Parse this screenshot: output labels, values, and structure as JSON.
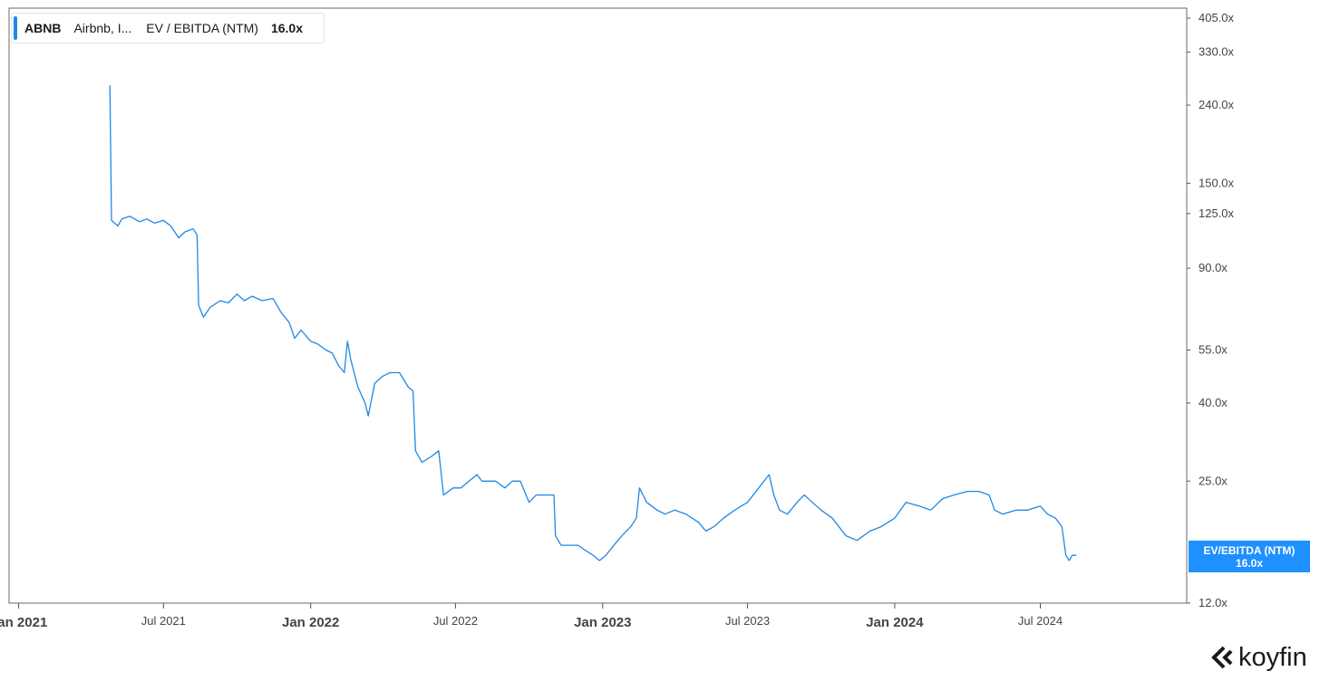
{
  "legend": {
    "ticker": "ABNB",
    "company": "Airbnb, I...",
    "metric": "EV / EBITDA (NTM)",
    "value": "16.0x"
  },
  "value_tag": {
    "label": "EV/EBITDA (NTM)",
    "value": "16.0x"
  },
  "brand": {
    "name": "koyfin"
  },
  "colors": {
    "series": "#1e88e5",
    "tag_bg": "#1e90ff",
    "axis": "#555555",
    "text": "#444444"
  },
  "chart_data": {
    "type": "line",
    "scale": "log",
    "ylim": [
      12,
      430
    ],
    "xlim": [
      "2020-12-20",
      "2024-12-31"
    ],
    "grid": false,
    "yticks": [
      {
        "value": 405,
        "label": "405.0x"
      },
      {
        "value": 330,
        "label": "330.0x"
      },
      {
        "value": 240,
        "label": "240.0x"
      },
      {
        "value": 150,
        "label": "150.0x"
      },
      {
        "value": 125,
        "label": "125.0x"
      },
      {
        "value": 90,
        "label": "90.0x"
      },
      {
        "value": 55,
        "label": "55.0x"
      },
      {
        "value": 40,
        "label": "40.0x"
      },
      {
        "value": 25,
        "label": "25.0x"
      },
      {
        "value": 12,
        "label": "12.0x"
      }
    ],
    "xticks": [
      {
        "date": "2021-01-01",
        "label": "Jan 2021",
        "major": true
      },
      {
        "date": "2021-07-01",
        "label": "Jul 2021",
        "major": false
      },
      {
        "date": "2022-01-01",
        "label": "Jan 2022",
        "major": true
      },
      {
        "date": "2022-07-01",
        "label": "Jul 2022",
        "major": false
      },
      {
        "date": "2023-01-01",
        "label": "Jan 2023",
        "major": true
      },
      {
        "date": "2023-07-01",
        "label": "Jul 2023",
        "major": false
      },
      {
        "date": "2024-01-01",
        "label": "Jan 2024",
        "major": true
      },
      {
        "date": "2024-07-01",
        "label": "Jul 2024",
        "major": false
      }
    ],
    "series": [
      {
        "name": "EV/EBITDA (NTM)",
        "points": [
          [
            "2021-04-25",
            270
          ],
          [
            "2021-04-27",
            120
          ],
          [
            "2021-05-05",
            116
          ],
          [
            "2021-05-10",
            121
          ],
          [
            "2021-05-20",
            123
          ],
          [
            "2021-06-01",
            119
          ],
          [
            "2021-06-10",
            121
          ],
          [
            "2021-06-20",
            118
          ],
          [
            "2021-07-01",
            120
          ],
          [
            "2021-07-10",
            116
          ],
          [
            "2021-07-20",
            108
          ],
          [
            "2021-07-28",
            112
          ],
          [
            "2021-08-07",
            114
          ],
          [
            "2021-08-12",
            110
          ],
          [
            "2021-08-14",
            72
          ],
          [
            "2021-08-20",
            67
          ],
          [
            "2021-08-28",
            71
          ],
          [
            "2021-09-10",
            74
          ],
          [
            "2021-09-20",
            73
          ],
          [
            "2021-10-01",
            77
          ],
          [
            "2021-10-10",
            74
          ],
          [
            "2021-10-20",
            76
          ],
          [
            "2021-11-01",
            74
          ],
          [
            "2021-11-15",
            75
          ],
          [
            "2021-11-25",
            69
          ],
          [
            "2021-12-05",
            65
          ],
          [
            "2021-12-12",
            59
          ],
          [
            "2021-12-20",
            62
          ],
          [
            "2022-01-01",
            58
          ],
          [
            "2022-01-10",
            57
          ],
          [
            "2022-01-20",
            55
          ],
          [
            "2022-01-28",
            54
          ],
          [
            "2022-02-05",
            50
          ],
          [
            "2022-02-12",
            48
          ],
          [
            "2022-02-16",
            58
          ],
          [
            "2022-02-20",
            52
          ],
          [
            "2022-03-01",
            44
          ],
          [
            "2022-03-10",
            40
          ],
          [
            "2022-03-14",
            37
          ],
          [
            "2022-03-22",
            45
          ],
          [
            "2022-04-01",
            47
          ],
          [
            "2022-04-10",
            48
          ],
          [
            "2022-04-22",
            48
          ],
          [
            "2022-05-03",
            44
          ],
          [
            "2022-05-09",
            43
          ],
          [
            "2022-05-12",
            30
          ],
          [
            "2022-05-20",
            28
          ],
          [
            "2022-06-01",
            29
          ],
          [
            "2022-06-10",
            30
          ],
          [
            "2022-06-16",
            23
          ],
          [
            "2022-06-28",
            24
          ],
          [
            "2022-07-08",
            24
          ],
          [
            "2022-07-18",
            25
          ],
          [
            "2022-07-28",
            26
          ],
          [
            "2022-08-03",
            25
          ],
          [
            "2022-08-10",
            25
          ],
          [
            "2022-08-20",
            25
          ],
          [
            "2022-09-01",
            24
          ],
          [
            "2022-09-10",
            25
          ],
          [
            "2022-09-20",
            25
          ],
          [
            "2022-10-01",
            22
          ],
          [
            "2022-10-10",
            23
          ],
          [
            "2022-10-20",
            23
          ],
          [
            "2022-11-01",
            23
          ],
          [
            "2022-11-03",
            18
          ],
          [
            "2022-11-10",
            17
          ],
          [
            "2022-11-20",
            17
          ],
          [
            "2022-12-01",
            17
          ],
          [
            "2022-12-10",
            16.5
          ],
          [
            "2022-12-20",
            16
          ],
          [
            "2022-12-28",
            15.5
          ],
          [
            "2023-01-05",
            16
          ],
          [
            "2023-01-15",
            17
          ],
          [
            "2023-01-25",
            18
          ],
          [
            "2023-02-05",
            19
          ],
          [
            "2023-02-12",
            20
          ],
          [
            "2023-02-16",
            24
          ],
          [
            "2023-02-25",
            22
          ],
          [
            "2023-03-10",
            21
          ],
          [
            "2023-03-20",
            20.5
          ],
          [
            "2023-04-01",
            21
          ],
          [
            "2023-04-15",
            20.5
          ],
          [
            "2023-05-01",
            19.5
          ],
          [
            "2023-05-10",
            18.5
          ],
          [
            "2023-05-20",
            19
          ],
          [
            "2023-06-01",
            20
          ],
          [
            "2023-06-15",
            21
          ],
          [
            "2023-07-01",
            22
          ],
          [
            "2023-07-15",
            24
          ],
          [
            "2023-07-28",
            26
          ],
          [
            "2023-08-03",
            23
          ],
          [
            "2023-08-10",
            21
          ],
          [
            "2023-08-20",
            20.5
          ],
          [
            "2023-09-01",
            22
          ],
          [
            "2023-09-10",
            23
          ],
          [
            "2023-09-20",
            22
          ],
          [
            "2023-10-01",
            21
          ],
          [
            "2023-10-15",
            20
          ],
          [
            "2023-11-01",
            18
          ],
          [
            "2023-11-15",
            17.5
          ],
          [
            "2023-12-01",
            18.5
          ],
          [
            "2023-12-15",
            19
          ],
          [
            "2024-01-01",
            20
          ],
          [
            "2024-01-15",
            22
          ],
          [
            "2024-02-01",
            21.5
          ],
          [
            "2024-02-15",
            21
          ],
          [
            "2024-03-01",
            22.5
          ],
          [
            "2024-03-15",
            23
          ],
          [
            "2024-04-01",
            23.5
          ],
          [
            "2024-04-15",
            23.5
          ],
          [
            "2024-04-28",
            23
          ],
          [
            "2024-05-05",
            21
          ],
          [
            "2024-05-15",
            20.5
          ],
          [
            "2024-06-01",
            21
          ],
          [
            "2024-06-15",
            21
          ],
          [
            "2024-07-01",
            21.5
          ],
          [
            "2024-07-10",
            20.5
          ],
          [
            "2024-07-20",
            20
          ],
          [
            "2024-07-28",
            19
          ],
          [
            "2024-08-02",
            16
          ],
          [
            "2024-08-06",
            15.5
          ],
          [
            "2024-08-10",
            16
          ],
          [
            "2024-08-15",
            16
          ]
        ]
      }
    ]
  }
}
